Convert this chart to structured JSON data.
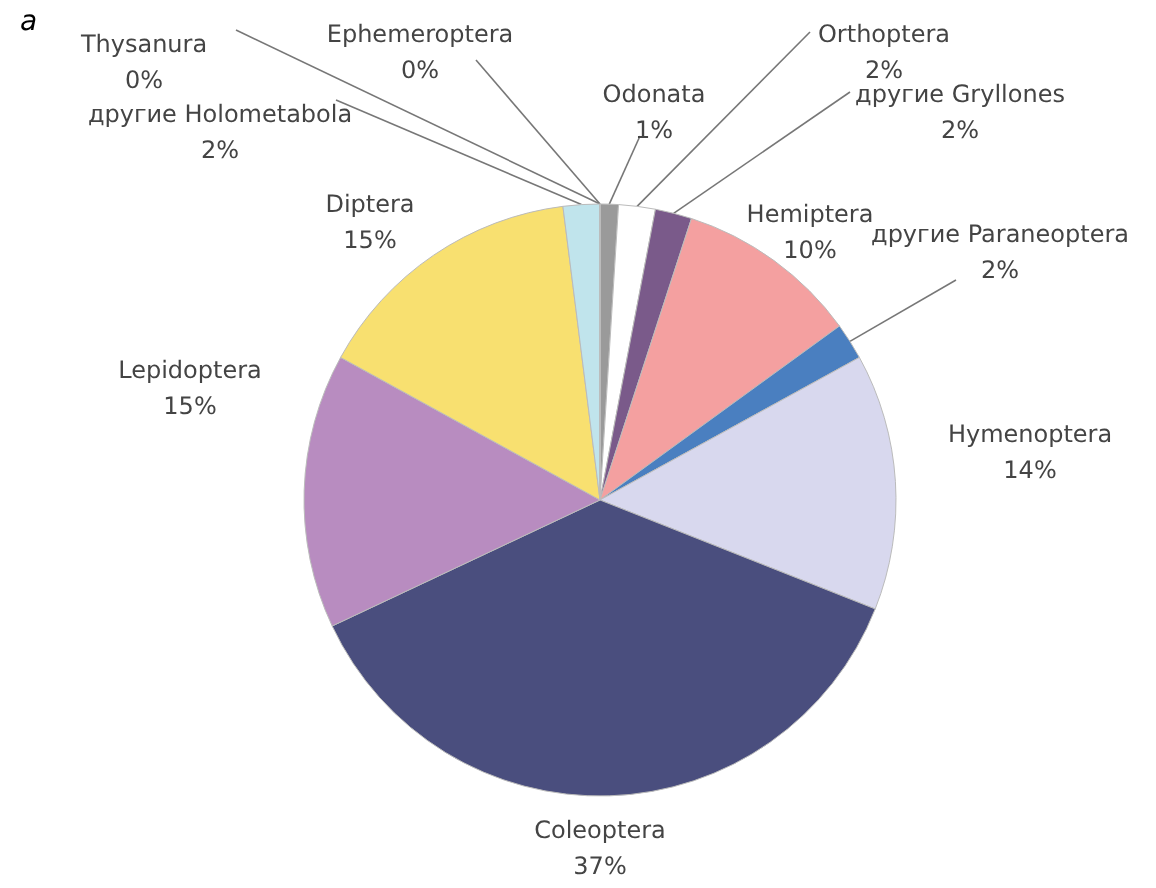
{
  "chart_data": {
    "type": "pie",
    "title": "a",
    "categories": [
      "Odonata",
      "Orthoptera",
      "другие Gryllones",
      "Hemiptera",
      "другие Paraneoptera",
      "Hymenoptera",
      "Coleoptera",
      "Lepidoptera",
      "Diptera",
      "другие Holometabola",
      "Thysanura",
      "Ephemeroptera"
    ],
    "values": [
      1,
      2,
      2,
      10,
      2,
      14,
      37,
      15,
      15,
      2,
      0,
      0
    ],
    "colors": [
      "#9a9a9a",
      "#ffffff",
      "#7a5a8a",
      "#f4a0a0",
      "#4a7fc0",
      "#d8d8ee",
      "#4a4e7e",
      "#b88cc0",
      "#f8e070",
      "#c0e4ec",
      "#404040",
      "#606060"
    ],
    "value_labels": [
      "1%",
      "2%",
      "2%",
      "10%",
      "2%",
      "14%",
      "37%",
      "15%",
      "15%",
      "2%",
      "0%",
      "0%"
    ]
  }
}
